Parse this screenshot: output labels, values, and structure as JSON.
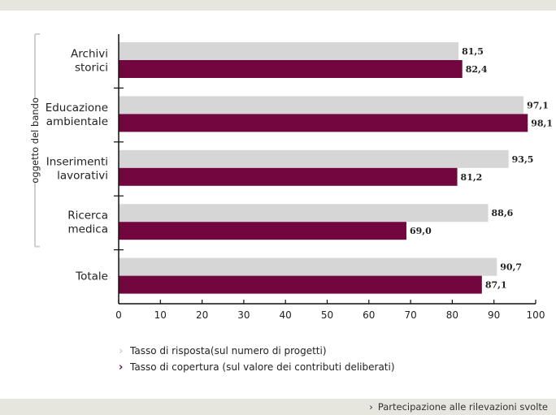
{
  "chart_data": {
    "type": "bar",
    "orientation": "horizontal",
    "categories": [
      [
        "Archivi",
        "storici"
      ],
      [
        "Educazione",
        "ambientale"
      ],
      [
        "Inserimenti",
        "lavorativi"
      ],
      [
        "Ricerca",
        "medica"
      ],
      [
        "Totale"
      ]
    ],
    "series": [
      {
        "name": "Tasso di risposta(sul numero di progetti)",
        "color": "#d6d6d6",
        "values": [
          81.5,
          97.1,
          93.5,
          88.6,
          90.7
        ],
        "labels": [
          "81,5",
          "97,1",
          "93,5",
          "88,6",
          "90,7"
        ]
      },
      {
        "name": "Tasso di copertura (sul valore dei contributi deliberati)",
        "color": "#72073f",
        "values": [
          82.4,
          98.1,
          81.2,
          69.0,
          87.1
        ],
        "labels": [
          "82,4",
          "98,1",
          "81,2",
          "69,0",
          "87,1"
        ]
      }
    ],
    "xlim": [
      0,
      100
    ],
    "xticks": [
      "0",
      "10",
      "20",
      "30",
      "40",
      "50",
      "60",
      "70",
      "80",
      "90",
      "100"
    ],
    "group_label": "oggetto del bando",
    "legend_position": "bottom-left"
  },
  "legend_marker": "›",
  "footer": {
    "arrow": "›",
    "text": "Partecipazione alle rilevazioni svolte"
  }
}
